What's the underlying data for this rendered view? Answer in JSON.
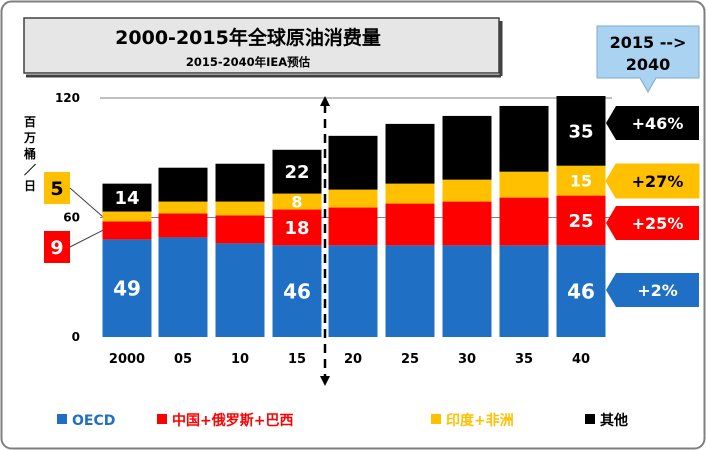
{
  "chart_data": {
    "type": "bar",
    "stacked": true,
    "title": "2000-2015年全球原油消费量",
    "subtitle": "2015-2040年IEA预估",
    "ylabel": "百万桶/日",
    "ylim": [
      0,
      120
    ],
    "yticks": [
      0,
      60,
      120
    ],
    "categories": [
      "2000",
      "05",
      "10",
      "15",
      "20",
      "25",
      "30",
      "35",
      "40"
    ],
    "series": [
      {
        "name": "OECD",
        "color": "#1f6fc5",
        "values": [
          49,
          50,
          47,
          46,
          46,
          46,
          46,
          46,
          46
        ]
      },
      {
        "name": "中国+俄罗斯+巴西",
        "color": "#ff0000",
        "values": [
          9,
          12,
          14,
          18,
          19,
          21,
          22,
          24,
          25
        ]
      },
      {
        "name": "印度+非洲",
        "color": "#ffc000",
        "values": [
          5,
          6,
          7,
          8,
          9,
          10,
          11,
          13,
          15
        ]
      },
      {
        "name": "其他",
        "color": "#000000",
        "values": [
          14,
          17,
          19,
          22,
          27,
          30,
          32,
          33,
          35
        ]
      }
    ],
    "bar_labels": [
      {
        "category": "2000",
        "series": "其他",
        "text": "14"
      },
      {
        "category": "2000",
        "series": "OECD",
        "text": "49"
      },
      {
        "category": "15",
        "series": "其他",
        "text": "22"
      },
      {
        "category": "15",
        "series": "印度+非洲",
        "text": "8"
      },
      {
        "category": "15",
        "series": "中国+俄罗斯+巴西",
        "text": "18"
      },
      {
        "category": "15",
        "series": "OECD",
        "text": "46"
      },
      {
        "category": "40",
        "series": "其他",
        "text": "35"
      },
      {
        "category": "40",
        "series": "印度+非洲",
        "text": "15"
      },
      {
        "category": "40",
        "series": "中国+俄罗斯+巴西",
        "text": "25"
      },
      {
        "category": "40",
        "series": "OECD",
        "text": "46"
      }
    ],
    "side_labels": [
      {
        "series": "印度+非洲",
        "text": "5"
      },
      {
        "series": "中国+俄罗斯+巴西",
        "text": "9"
      }
    ],
    "growth_header": "2015 --> 2040",
    "growth": [
      {
        "series": "其他",
        "text": "+46%"
      },
      {
        "series": "印度+非洲",
        "text": "+27%"
      },
      {
        "series": "中国+俄罗斯+巴西",
        "text": "+25%"
      },
      {
        "series": "OECD",
        "text": "+2%"
      }
    ],
    "divider_after": "15"
  },
  "colors": {
    "oecd": "#1f6fc5",
    "crb": "#ff0000",
    "india_africa": "#ffc000",
    "other": "#000000",
    "growth_blue": "#1f6fc5",
    "header_bg": "#a9d3f0",
    "title_bg": "#e6e6e6"
  }
}
